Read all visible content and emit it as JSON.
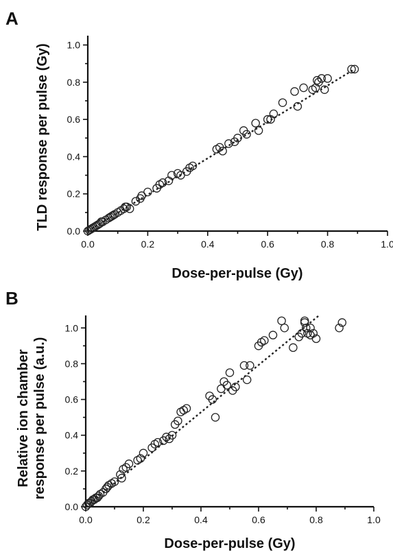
{
  "chart_data": [
    {
      "panel": "A",
      "type": "scatter",
      "xlabel": "Dose-per-pulse (Gy)",
      "ylabel": "TLD response per pulse (Gy)",
      "xlim": [
        0,
        1.0
      ],
      "ylim": [
        0,
        1.05
      ],
      "xticks": [
        "0.0",
        "0.2",
        "0.4",
        "0.6",
        "0.8",
        "1.0"
      ],
      "yticks": [
        "0.0",
        "0.2",
        "0.4",
        "0.6",
        "0.8",
        "1.0"
      ],
      "grid": false,
      "series": [
        {
          "marker": "open-circle",
          "x": [
            0.0,
            0.005,
            0.01,
            0.015,
            0.02,
            0.025,
            0.03,
            0.035,
            0.04,
            0.045,
            0.05,
            0.06,
            0.07,
            0.075,
            0.08,
            0.085,
            0.09,
            0.1,
            0.11,
            0.12,
            0.125,
            0.13,
            0.14,
            0.16,
            0.175,
            0.18,
            0.2,
            0.23,
            0.24,
            0.25,
            0.27,
            0.28,
            0.3,
            0.31,
            0.33,
            0.34,
            0.35,
            0.43,
            0.44,
            0.45,
            0.47,
            0.49,
            0.5,
            0.52,
            0.53,
            0.56,
            0.57,
            0.6,
            0.61,
            0.62,
            0.65,
            0.69,
            0.7,
            0.72,
            0.75,
            0.76,
            0.765,
            0.77,
            0.78,
            0.79,
            0.8,
            0.88,
            0.89
          ],
          "y": [
            0.0,
            0.005,
            0.01,
            0.015,
            0.02,
            0.025,
            0.03,
            0.035,
            0.04,
            0.05,
            0.05,
            0.06,
            0.07,
            0.075,
            0.08,
            0.085,
            0.09,
            0.1,
            0.11,
            0.12,
            0.13,
            0.13,
            0.12,
            0.16,
            0.175,
            0.19,
            0.21,
            0.23,
            0.25,
            0.26,
            0.27,
            0.3,
            0.31,
            0.3,
            0.32,
            0.34,
            0.35,
            0.44,
            0.45,
            0.43,
            0.47,
            0.48,
            0.5,
            0.54,
            0.52,
            0.58,
            0.54,
            0.6,
            0.6,
            0.63,
            0.69,
            0.75,
            0.67,
            0.77,
            0.76,
            0.77,
            0.81,
            0.8,
            0.82,
            0.76,
            0.82,
            0.87,
            0.87
          ]
        }
      ],
      "fit": {
        "x": [
          0.0,
          0.89
        ],
        "y": [
          0.0,
          0.87
        ]
      }
    },
    {
      "panel": "B",
      "type": "scatter",
      "xlabel": "Dose-per-pulse (Gy)",
      "ylabel": "Relative ion chamber response per pulse (a.u.)",
      "ylabel_lines": [
        "Relative ion chamber",
        "response per pulse (a.u.)"
      ],
      "xlim": [
        0,
        1.0
      ],
      "ylim": [
        0,
        1.07
      ],
      "xticks": [
        "0.0",
        "0.2",
        "0.4",
        "0.6",
        "0.8",
        "1.0"
      ],
      "yticks": [
        "0.0",
        "0.2",
        "0.4",
        "0.6",
        "0.8",
        "1.0"
      ],
      "grid": false,
      "series": [
        {
          "marker": "open-circle",
          "x": [
            0.0,
            0.005,
            0.01,
            0.015,
            0.02,
            0.025,
            0.03,
            0.035,
            0.04,
            0.045,
            0.05,
            0.06,
            0.07,
            0.075,
            0.08,
            0.09,
            0.1,
            0.12,
            0.125,
            0.13,
            0.14,
            0.15,
            0.18,
            0.19,
            0.2,
            0.23,
            0.24,
            0.25,
            0.27,
            0.28,
            0.29,
            0.3,
            0.31,
            0.32,
            0.33,
            0.34,
            0.35,
            0.43,
            0.44,
            0.45,
            0.47,
            0.48,
            0.49,
            0.5,
            0.51,
            0.52,
            0.55,
            0.56,
            0.57,
            0.6,
            0.61,
            0.62,
            0.65,
            0.68,
            0.69,
            0.72,
            0.74,
            0.75,
            0.76,
            0.765,
            0.77,
            0.78,
            0.79,
            0.8,
            0.88,
            0.89
          ],
          "y": [
            0.0,
            0.01,
            0.02,
            0.02,
            0.03,
            0.04,
            0.04,
            0.05,
            0.05,
            0.06,
            0.07,
            0.08,
            0.1,
            0.11,
            0.12,
            0.13,
            0.14,
            0.18,
            0.16,
            0.21,
            0.22,
            0.24,
            0.26,
            0.27,
            0.3,
            0.33,
            0.35,
            0.36,
            0.37,
            0.39,
            0.38,
            0.4,
            0.46,
            0.48,
            0.53,
            0.54,
            0.55,
            0.62,
            0.6,
            0.5,
            0.66,
            0.7,
            0.68,
            0.75,
            0.65,
            0.67,
            0.79,
            0.71,
            0.79,
            0.9,
            0.92,
            0.93,
            0.96,
            1.04,
            1.0,
            0.89,
            0.95,
            0.97,
            1.04,
            1.0,
            0.97,
            1.0,
            0.97,
            0.94,
            1.0,
            1.03
          ],
          "extra_x": [
            0.76,
            0.78
          ],
          "extra_y": [
            1.03,
            0.96
          ]
        }
      ],
      "fit": {
        "x": [
          0.0,
          0.81
        ],
        "y": [
          0.0,
          1.07
        ]
      }
    }
  ]
}
